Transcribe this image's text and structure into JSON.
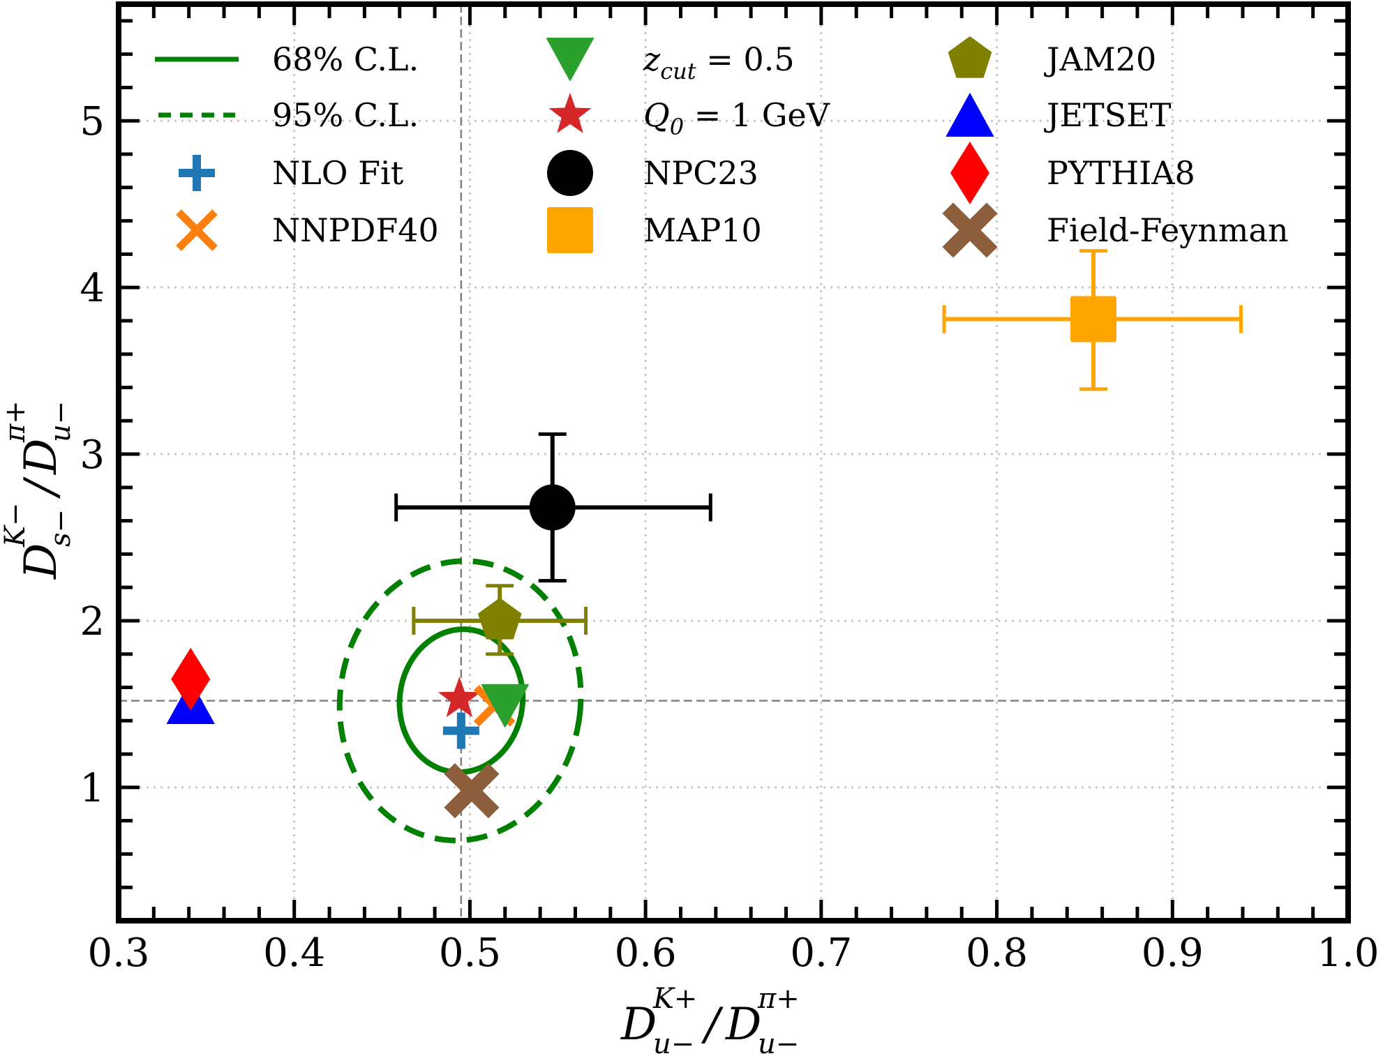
{
  "chart_data": {
    "type": "scatter",
    "title": "",
    "xlabel": {
      "main": "D",
      "sup1": "K+",
      "sub1": "u−",
      "sep": "/",
      "sup2": "π+",
      "sub2": "u−"
    },
    "ylabel": {
      "main": "D",
      "sup1": "K−",
      "sub1": "s−",
      "sep": "/",
      "sup2": "π+",
      "sub2": "u−"
    },
    "xlim": [
      0.3,
      1.0
    ],
    "ylim": [
      0.2,
      5.7
    ],
    "xticks": [
      0.3,
      0.4,
      0.5,
      0.6,
      0.7,
      0.8,
      0.9,
      1.0
    ],
    "xtick_labels": [
      "0.3",
      "0.4",
      "0.5",
      "0.6",
      "0.7",
      "0.8",
      "0.9",
      "1.0"
    ],
    "yticks": [
      1,
      2,
      3,
      4,
      5
    ],
    "ytick_labels": [
      "1",
      "2",
      "3",
      "4",
      "5"
    ],
    "x_minor_step": 0.02,
    "y_minor_step": 0.2,
    "grid": true,
    "reference_lines": {
      "vertical_x": 0.495,
      "horizontal_y": 1.52
    },
    "legend_position": "top",
    "ellipses": [
      {
        "name": "68% C.L.",
        "style": "solid",
        "color": "#008000",
        "cx": 0.495,
        "cy": 1.52,
        "x_half_width": 0.035,
        "y_half_height": 0.43,
        "tilt": 0.12
      },
      {
        "name": "95% C.L.",
        "style": "dashed",
        "color": "#008000",
        "cx": 0.4945,
        "cy": 1.52,
        "x_half_width": 0.0685,
        "y_half_height": 0.84,
        "tilt": 0.12
      }
    ],
    "series": [
      {
        "name": "NLO Fit",
        "marker": "plus",
        "color": "#1f77b4",
        "x": 0.495,
        "y": 1.34
      },
      {
        "name": "NNPDF40",
        "marker": "x",
        "color": "#ff7f0e",
        "x": 0.514,
        "y": 1.49
      },
      {
        "name": "z_cut = 0.5",
        "marker": "triangle-down",
        "color": "#2ca02c",
        "x": 0.52,
        "y": 1.49
      },
      {
        "name": "Q_0 = 1 GeV",
        "marker": "star",
        "color": "#d62728",
        "x": 0.494,
        "y": 1.53
      },
      {
        "name": "NPC23",
        "marker": "circle",
        "color": "#000000",
        "x": 0.547,
        "y": 2.68,
        "xerr": [
          0.458,
          0.637
        ],
        "yerr": [
          2.24,
          3.12
        ]
      },
      {
        "name": "MAP10",
        "marker": "square",
        "color": "#ffa500",
        "x": 0.855,
        "y": 3.81,
        "xerr": [
          0.77,
          0.939
        ],
        "yerr": [
          3.39,
          4.22
        ]
      },
      {
        "name": "JAM20",
        "marker": "pentagon",
        "color": "#808000",
        "x": 0.517,
        "y": 2.0,
        "xerr": [
          0.468,
          0.566
        ],
        "yerr": [
          1.8,
          2.21
        ]
      },
      {
        "name": "JETSET",
        "marker": "triangle-up",
        "color": "#0000ff",
        "x": 0.341,
        "y": 1.51
      },
      {
        "name": "PYTHIA8",
        "marker": "diamond",
        "color": "#ff0000",
        "x": 0.341,
        "y": 1.65
      },
      {
        "name": "Field-Feynman",
        "marker": "thick-x",
        "color": "#8c5e3c",
        "x": 0.501,
        "y": 0.98
      }
    ],
    "legend": [
      [
        {
          "label": "68% C.L.",
          "key": "line-solid"
        },
        {
          "label": "95% C.L.",
          "key": "line-dashed"
        },
        {
          "label": "NLO Fit",
          "key": "NLO Fit"
        },
        {
          "label": "NNPDF40",
          "key": "NNPDF40"
        }
      ],
      [
        {
          "label": "z",
          "sub": "cut",
          "rest": " = 0.5",
          "key": "z_cut = 0.5"
        },
        {
          "label": "Q",
          "sub": "0",
          "rest": " = 1 GeV",
          "key": "Q_0 = 1 GeV"
        },
        {
          "label": "NPC23",
          "key": "NPC23"
        },
        {
          "label": "MAP10",
          "key": "MAP10"
        }
      ],
      [
        {
          "label": "JAM20",
          "key": "JAM20"
        },
        {
          "label": "JETSET",
          "key": "JETSET"
        },
        {
          "label": "PYTHIA8",
          "key": "PYTHIA8"
        },
        {
          "label": "Field-Feynman",
          "key": "Field-Feynman"
        }
      ]
    ]
  }
}
